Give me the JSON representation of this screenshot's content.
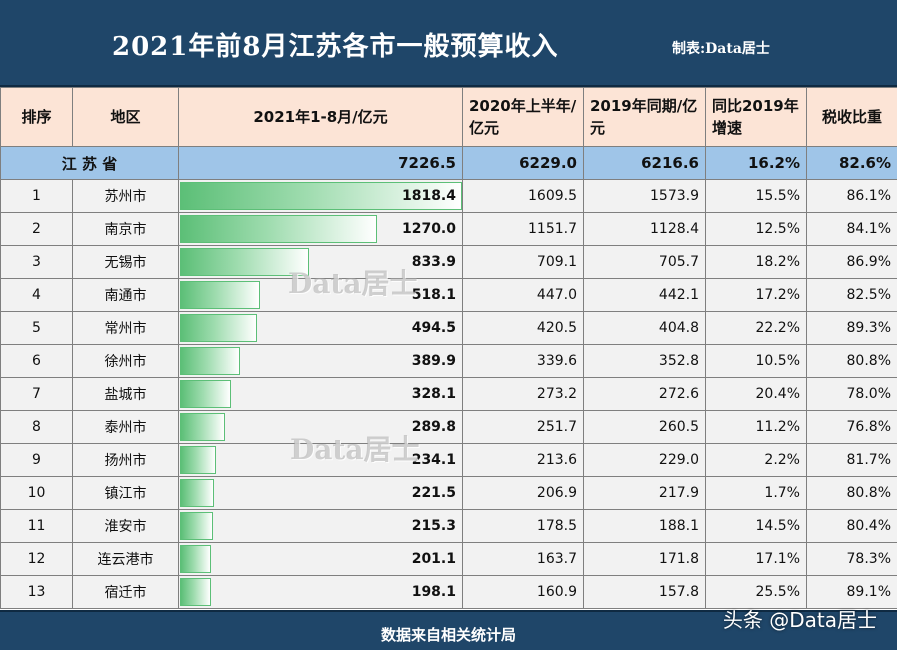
{
  "header": {
    "title": "2021年前8月江苏各市一般预算收入",
    "credit": "制表:Data居士"
  },
  "columns": [
    "排序",
    "地区",
    "2021年1-8月/亿元",
    "2020年上半年/亿元",
    "2019年同期/亿元",
    "同比2019年增速",
    "税收比重"
  ],
  "total": {
    "region": "江 苏 省",
    "y2021": "7226.5",
    "y2020": "6229.0",
    "y2019": "6216.6",
    "growth": "16.2%",
    "tax": "82.6%"
  },
  "rows": [
    {
      "rank": "1",
      "city": "苏州市",
      "y2021": "1818.4",
      "y2020": "1609.5",
      "y2019": "1573.9",
      "growth": "15.5%",
      "tax": "86.1%"
    },
    {
      "rank": "2",
      "city": "南京市",
      "y2021": "1270.0",
      "y2020": "1151.7",
      "y2019": "1128.4",
      "growth": "12.5%",
      "tax": "84.1%"
    },
    {
      "rank": "3",
      "city": "无锡市",
      "y2021": "833.9",
      "y2020": "709.1",
      "y2019": "705.7",
      "growth": "18.2%",
      "tax": "86.9%"
    },
    {
      "rank": "4",
      "city": "南通市",
      "y2021": "518.1",
      "y2020": "447.0",
      "y2019": "442.1",
      "growth": "17.2%",
      "tax": "82.5%"
    },
    {
      "rank": "5",
      "city": "常州市",
      "y2021": "494.5",
      "y2020": "420.5",
      "y2019": "404.8",
      "growth": "22.2%",
      "tax": "89.3%"
    },
    {
      "rank": "6",
      "city": "徐州市",
      "y2021": "389.9",
      "y2020": "339.6",
      "y2019": "352.8",
      "growth": "10.5%",
      "tax": "80.8%"
    },
    {
      "rank": "7",
      "city": "盐城市",
      "y2021": "328.1",
      "y2020": "273.2",
      "y2019": "272.6",
      "growth": "20.4%",
      "tax": "78.0%"
    },
    {
      "rank": "8",
      "city": "泰州市",
      "y2021": "289.8",
      "y2020": "251.7",
      "y2019": "260.5",
      "growth": "11.2%",
      "tax": "76.8%"
    },
    {
      "rank": "9",
      "city": "扬州市",
      "y2021": "234.1",
      "y2020": "213.6",
      "y2019": "229.0",
      "growth": "2.2%",
      "tax": "81.7%"
    },
    {
      "rank": "10",
      "city": "镇江市",
      "y2021": "221.5",
      "y2020": "206.9",
      "y2019": "217.9",
      "growth": "1.7%",
      "tax": "80.8%"
    },
    {
      "rank": "11",
      "city": "淮安市",
      "y2021": "215.3",
      "y2020": "178.5",
      "y2019": "188.1",
      "growth": "14.5%",
      "tax": "80.4%"
    },
    {
      "rank": "12",
      "city": "连云港市",
      "y2021": "201.1",
      "y2020": "163.7",
      "y2019": "171.8",
      "growth": "17.1%",
      "tax": "78.3%"
    },
    {
      "rank": "13",
      "city": "宿迁市",
      "y2021": "198.1",
      "y2020": "160.9",
      "y2019": "157.8",
      "growth": "25.5%",
      "tax": "89.1%"
    }
  ],
  "footer": "数据来自相关统计局",
  "watermark": "Data居士",
  "corner_mark": "头条 @Data居士",
  "colors": {
    "header_bg": "#1f4669",
    "column_header_bg": "#fce4d6",
    "total_row_bg": "#9fc5e8",
    "bar_green": "#5cbf77"
  }
}
